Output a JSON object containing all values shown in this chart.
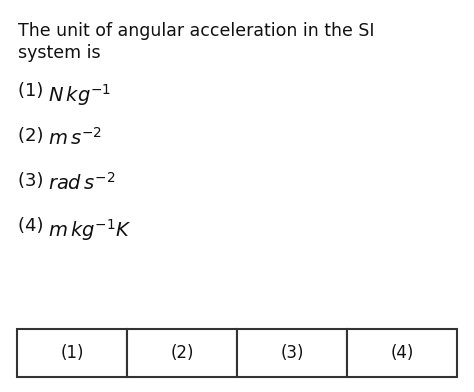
{
  "background_color": "#ffffff",
  "question_text_line1": "The unit of angular acceleration in the SI",
  "question_text_line2": "system is",
  "options": [
    {
      "num": "(1) ",
      "formula": "$N\\,kg^{-1}$"
    },
    {
      "num": "(2) ",
      "formula": "$m\\,s^{-2}$"
    },
    {
      "num": "(3) ",
      "formula": "$rad\\,s^{-2}$"
    },
    {
      "num": "(4) ",
      "formula": "$m\\,kg^{-1}K$"
    }
  ],
  "answer_boxes": [
    "(1)",
    "(2)",
    "(3)",
    "(4)"
  ],
  "text_color": "#111111",
  "box_color": "#333333",
  "question_fontsize": 12.5,
  "option_num_fontsize": 13,
  "option_formula_fontsize": 14,
  "answer_fontsize": 12
}
